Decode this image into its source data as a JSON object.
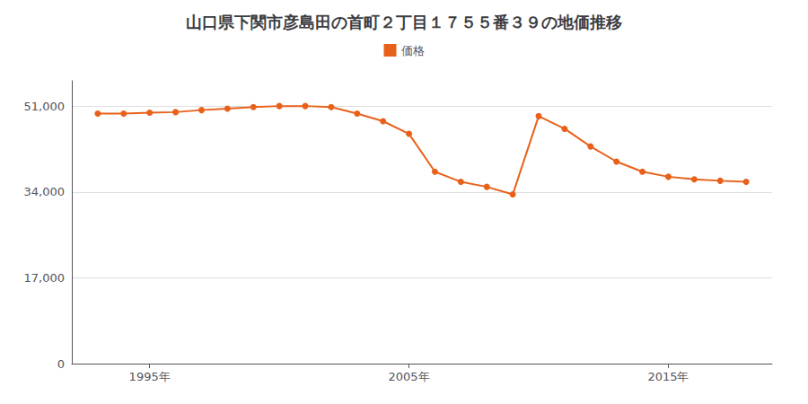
{
  "chart_data": {
    "type": "line",
    "title": "山口県下関市彦島田の首町２丁目１７５５番３９の地価推移",
    "series": [
      {
        "name": "価格",
        "color": "#e8611a",
        "marker": "circle",
        "x": [
          1993,
          1994,
          1995,
          1996,
          1997,
          1998,
          1999,
          2000,
          2001,
          2002,
          2003,
          2004,
          2005,
          2006,
          2007,
          2008,
          2009,
          2010,
          2011,
          2012,
          2013,
          2014,
          2015,
          2016,
          2017,
          2018
        ],
        "values": [
          49500,
          49500,
          49700,
          49800,
          50200,
          50500,
          50800,
          51000,
          51000,
          50800,
          49500,
          48000,
          45500,
          38000,
          36000,
          35000,
          33500,
          49000,
          46500,
          43000,
          40000,
          38000,
          37000,
          36500,
          36200,
          36000
        ]
      }
    ],
    "xlim": [
      1992,
      2019
    ],
    "xticks": [
      {
        "value": 1995,
        "label": "1995年"
      },
      {
        "value": 2005,
        "label": "2005年"
      },
      {
        "value": 2015,
        "label": "2015年"
      }
    ],
    "ylim": [
      0,
      56000
    ],
    "yticks": [
      0,
      {
        "value": 17000,
        "label": "17,000"
      },
      {
        "value": 34000,
        "label": "34,000"
      },
      {
        "value": 51000,
        "label": "51,000"
      }
    ],
    "grid": true,
    "legend": "top"
  }
}
